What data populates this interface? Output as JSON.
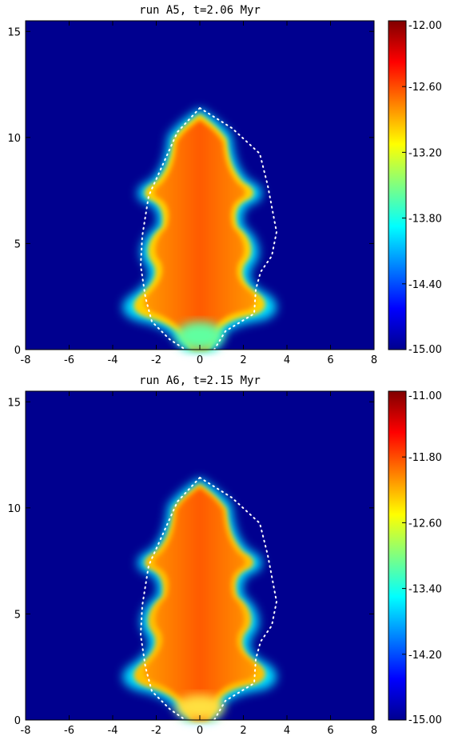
{
  "chart_data": [
    {
      "type": "heatmap",
      "title": "run A5, t=2.06 Myr",
      "xlim": [
        -8,
        8
      ],
      "ylim": [
        0,
        15.5
      ],
      "xticks": [
        "-8",
        "-6",
        "-4",
        "-2",
        "0",
        "2",
        "4",
        "6",
        "8"
      ],
      "yticks": [
        "0",
        "5",
        "10",
        "15"
      ],
      "colorbar": {
        "min": -15.0,
        "max": -12.0,
        "ticks": [
          "-12.00",
          "-12.60",
          "-13.20",
          "-13.80",
          "-14.40",
          "-15.00"
        ]
      },
      "background_color": "#00008f",
      "front_dotted_line_color": "#ffffff"
    },
    {
      "type": "heatmap",
      "title": "run A6, t=2.15 Myr",
      "xlim": [
        -8,
        8
      ],
      "ylim": [
        0,
        15.5
      ],
      "xticks": [
        "-8",
        "-6",
        "-4",
        "-2",
        "0",
        "2",
        "4",
        "6",
        "8"
      ],
      "yticks": [
        "0",
        "5",
        "10",
        "15"
      ],
      "colorbar": {
        "min": -15.0,
        "max": -11.0,
        "ticks": [
          "-11.00",
          "-11.80",
          "-12.60",
          "-13.40",
          "-14.20",
          "-15.00"
        ]
      },
      "background_color": "#00008f",
      "front_dotted_line_color": "#ffffff"
    }
  ],
  "colormap": [
    "#00008f",
    "#0000ff",
    "#00ffff",
    "#ffff00",
    "#ff8000",
    "#ff0000",
    "#800000"
  ]
}
